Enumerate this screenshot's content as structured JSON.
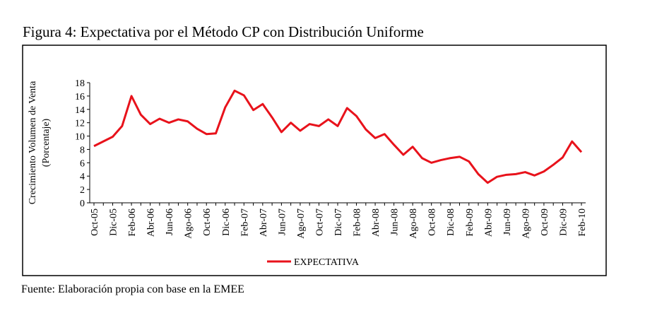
{
  "chart_data": {
    "type": "line",
    "title": "Figura 4: Expectativa por el Método CP con Distribución Uniforme",
    "y_label": [
      "Crecimiento  Volumen  de Venta",
      "(Porcentaje)"
    ],
    "source": "Fuente: Elaboración propia con base en la EMEE",
    "categories": [
      "Oct-05",
      null,
      "Dic-05",
      null,
      "Feb-06",
      null,
      "Abr-06",
      null,
      "Jun-06",
      null,
      "Ago-06",
      null,
      "Oct-06",
      null,
      "Dic-06",
      null,
      "Feb-07",
      null,
      "Abr-07",
      null,
      "Jun-07",
      null,
      "Ago-07",
      null,
      "Oct-07",
      null,
      "Dic-07",
      null,
      "Feb-08",
      null,
      "Abr-08",
      null,
      "Jun-08",
      null,
      "Ago-08",
      null,
      "Oct-08",
      null,
      "Dic-08",
      null,
      "Feb-09",
      null,
      "Abr-09",
      null,
      "Jun-09",
      null,
      "Ago-09",
      null,
      "Oct-09",
      null,
      "Dic-09",
      null,
      "Feb-10"
    ],
    "series": [
      {
        "name": "EXPECTATIVA",
        "color": "#e8121b",
        "values": [
          8.5,
          9.2,
          9.9,
          11.5,
          16.0,
          13.2,
          11.8,
          12.6,
          12.0,
          12.5,
          12.2,
          11.1,
          10.3,
          10.4,
          14.3,
          16.8,
          16.1,
          13.9,
          14.8,
          12.8,
          10.6,
          12.0,
          10.8,
          11.8,
          11.5,
          12.5,
          11.5,
          14.2,
          13.0,
          11.0,
          9.7,
          10.3,
          8.7,
          7.2,
          8.4,
          6.7,
          6.0,
          6.4,
          6.7,
          6.9,
          6.2,
          4.3,
          3.0,
          3.9,
          4.2,
          4.3,
          4.6,
          4.1,
          4.7,
          5.7,
          6.8,
          9.2,
          7.6
        ]
      }
    ],
    "ylim": [
      0,
      18
    ],
    "yticks": [
      0,
      2,
      4,
      6,
      8,
      10,
      12,
      14,
      16,
      18
    ]
  }
}
